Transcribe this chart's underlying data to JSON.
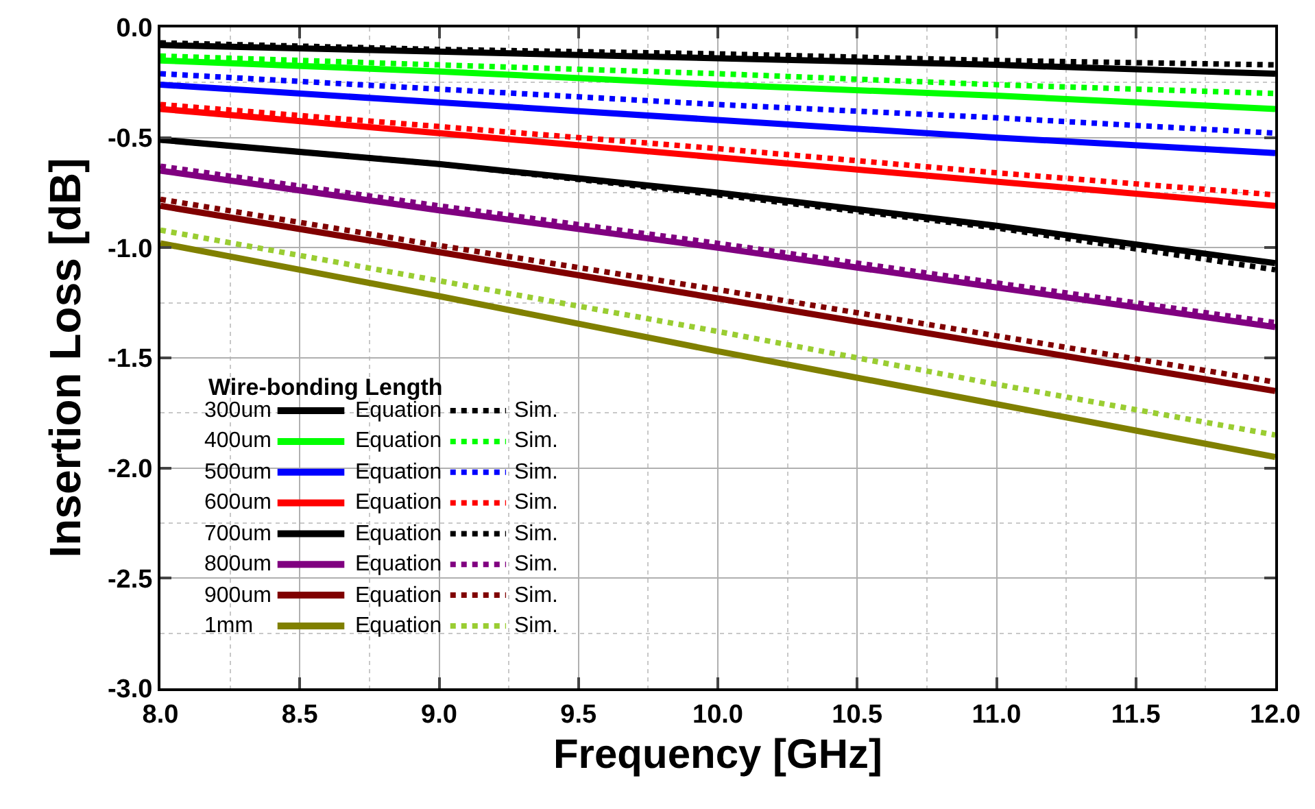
{
  "chart_data": {
    "type": "line",
    "xlabel": "Frequency [GHz]",
    "ylabel": "Insertion Loss [dB]",
    "legend_title": "Wire-bonding Length",
    "x": [
      8,
      9,
      10,
      11,
      12
    ],
    "xlim": [
      8,
      12
    ],
    "xticks": [
      {
        "value": 8,
        "label": "8.0"
      },
      {
        "value": 8.5,
        "label": "8.5"
      },
      {
        "value": 9,
        "label": "9.0"
      },
      {
        "value": 9.5,
        "label": "9.5"
      },
      {
        "value": 10,
        "label": "10.0"
      },
      {
        "value": 10.5,
        "label": "10.5"
      },
      {
        "value": 11,
        "label": "11.0"
      },
      {
        "value": 11.5,
        "label": "11.5"
      },
      {
        "value": 12,
        "label": "12.0"
      }
    ],
    "ylim": [
      -3,
      0
    ],
    "yticks": [
      {
        "value": -3,
        "label": "-3.0"
      },
      {
        "value": -2.5,
        "label": "-2.5"
      },
      {
        "value": -2,
        "label": "-2.0"
      },
      {
        "value": -1.5,
        "label": "-1.5"
      },
      {
        "value": -1,
        "label": "-1.0"
      },
      {
        "value": -0.5,
        "label": "-0.5"
      },
      {
        "value": 0,
        "label": "0.0"
      }
    ],
    "grid": true,
    "legend": "bottom left",
    "annotations": [
      "300um",
      "400um",
      "500um",
      "600um",
      "700um",
      "800um",
      "900um",
      "1mm"
    ],
    "series": [
      {
        "name": "Equation",
        "color": "#000000",
        "line_style": "solid",
        "values": [
          -0.08,
          -0.11,
          -0.14,
          -0.17,
          -0.21
        ]
      },
      {
        "name": "Sim.",
        "color": "#000000",
        "line_style": "dotted",
        "values": [
          -0.07,
          -0.1,
          -0.12,
          -0.15,
          -0.17
        ]
      },
      {
        "name": "Equation",
        "color": "#00ff00",
        "line_style": "solid",
        "values": [
          -0.15,
          -0.2,
          -0.26,
          -0.31,
          -0.37
        ]
      },
      {
        "name": "Sim.",
        "color": "#00ff00",
        "line_style": "dotted",
        "values": [
          -0.13,
          -0.17,
          -0.21,
          -0.26,
          -0.3
        ]
      },
      {
        "name": "Equation",
        "color": "#0000ff",
        "line_style": "solid",
        "values": [
          -0.26,
          -0.34,
          -0.42,
          -0.5,
          -0.57
        ]
      },
      {
        "name": "Sim.",
        "color": "#0000ff",
        "line_style": "dotted",
        "values": [
          -0.21,
          -0.28,
          -0.35,
          -0.41,
          -0.48
        ]
      },
      {
        "name": "Equation",
        "color": "#ff0000",
        "line_style": "solid",
        "values": [
          -0.37,
          -0.48,
          -0.59,
          -0.7,
          -0.81
        ]
      },
      {
        "name": "Sim.",
        "color": "#ff0000",
        "line_style": "dotted",
        "values": [
          -0.35,
          -0.45,
          -0.55,
          -0.66,
          -0.76
        ]
      },
      {
        "name": "Equation",
        "color": "#000000",
        "line_style": "solid",
        "values": [
          -0.51,
          -0.62,
          -0.75,
          -0.9,
          -1.07
        ]
      },
      {
        "name": "Sim.",
        "color": "#000000",
        "line_style": "dotted",
        "values": [
          -0.51,
          -0.62,
          -0.76,
          -0.91,
          -1.1
        ]
      },
      {
        "name": "Equation",
        "color": "#800080",
        "line_style": "solid",
        "values": [
          -0.65,
          -0.83,
          -1.0,
          -1.18,
          -1.36
        ]
      },
      {
        "name": "Sim.",
        "color": "#800080",
        "line_style": "dotted",
        "values": [
          -0.63,
          -0.81,
          -0.98,
          -1.16,
          -1.34
        ]
      },
      {
        "name": "Equation",
        "color": "#800000",
        "line_style": "solid",
        "values": [
          -0.81,
          -1.02,
          -1.23,
          -1.44,
          -1.65
        ]
      },
      {
        "name": "Sim.",
        "color": "#800000",
        "line_style": "dotted",
        "values": [
          -0.78,
          -0.99,
          -1.19,
          -1.4,
          -1.61
        ]
      },
      {
        "name": "Equation",
        "color": "#808000",
        "line_style": "solid",
        "values": [
          -0.98,
          -1.22,
          -1.47,
          -1.71,
          -1.95
        ]
      },
      {
        "name": "Sim.",
        "color": "#9acd32",
        "line_style": "dotted",
        "values": [
          -0.92,
          -1.15,
          -1.38,
          -1.62,
          -1.85
        ]
      }
    ]
  }
}
